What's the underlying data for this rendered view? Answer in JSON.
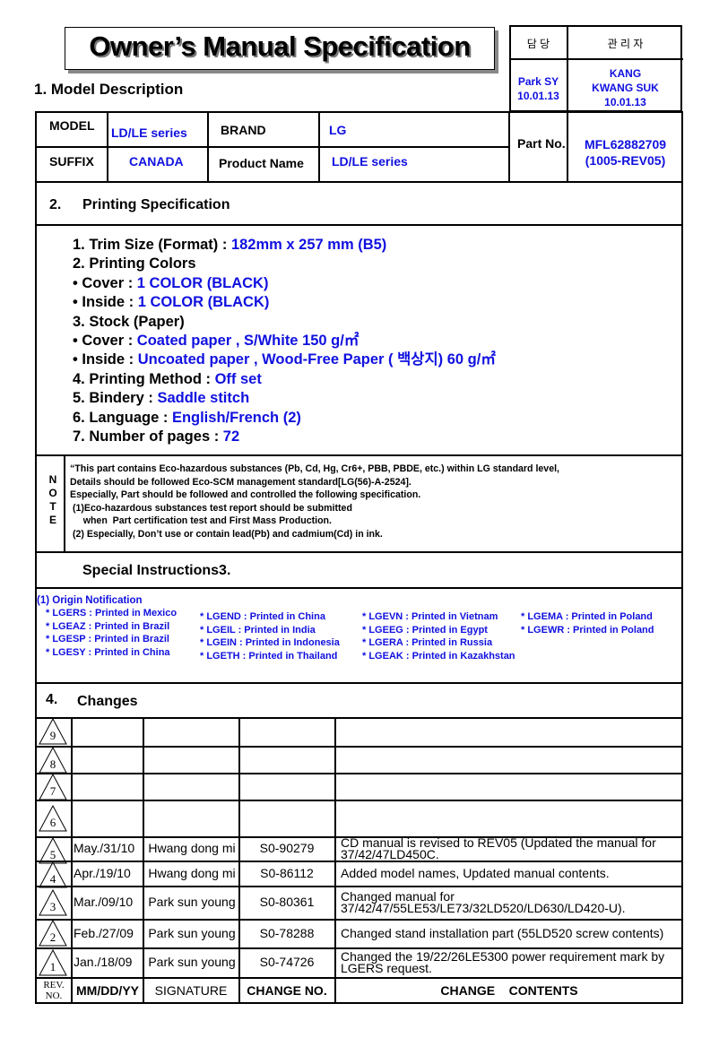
{
  "title": "Owner’s Manual Specification",
  "approval": {
    "col1_header": "담 당",
    "col2_header": "관 리 자",
    "col1_value": [
      "Park SY",
      "10.01.13"
    ],
    "col2_value": [
      "KANG",
      "KWANG SUK",
      "10.01.13"
    ]
  },
  "section1": {
    "title": "1. Model Description",
    "model_label": "MODEL",
    "model_value": "LD/LE series",
    "brand_label": "BRAND",
    "brand_value": "LG",
    "suffix_label": "SUFFIX",
    "suffix_value": "CANADA",
    "product_label": "Product Name",
    "product_value": "LD/LE series",
    "part_label": "Part No.",
    "part_value": [
      "MFL62882709",
      "(1005-REV05)"
    ]
  },
  "section2": {
    "num": "2.",
    "title": "Printing Specification",
    "lines": [
      {
        "label": "1. Trim Size (Format) : ",
        "value": "182mm x 257 mm (B5)"
      },
      {
        "label": "2. Printing Colors",
        "value": ""
      },
      {
        "label": "• Cover : ",
        "value": "1 COLOR (BLACK)"
      },
      {
        "label": "• Inside : ",
        "value": "1 COLOR (BLACK)"
      },
      {
        "label": "3. Stock (Paper)",
        "value": ""
      },
      {
        "label": "• Cover : ",
        "value": "Coated paper , S/White 150 g/㎡"
      },
      {
        "label": "• Inside : ",
        "value": "Uncoated paper , Wood-Free Paper ( 백상지) 60 g/㎡"
      },
      {
        "label": "4. Printing Method : ",
        "value": "Off set"
      },
      {
        "label": "5. Bindery  : ",
        "value": "Saddle stitch"
      },
      {
        "label": "6. Language : ",
        "value": "English/French (2)"
      },
      {
        "label": "7. Number of pages : ",
        "value": "72"
      }
    ]
  },
  "note": {
    "label": [
      "N",
      "O",
      "T",
      "E"
    ],
    "lines": [
      "“This part contains Eco-hazardous substances (Pb, Cd, Hg, Cr6+, PBB, PBDE, etc.) within LG standard level,",
      "Details should be followed Eco-SCM management standard[LG(56)-A-2524].",
      "Especially, Part should be followed and controlled the following specification.",
      " (1)Eco-hazardous substances test report should be submitted",
      "     when  Part certification test and First Mass Production.",
      " (2) Especially, Don’t use or contain lead(Pb) and cadmium(Cd) in ink."
    ]
  },
  "section3": {
    "title": "Special Instructions3.",
    "origin_title": "(1) Origin Notification",
    "columns": [
      [
        "* LGERS : Printed in Mexico",
        "* LGEAZ : Printed in Brazil",
        "* LGESP : Printed in Brazil",
        "* LGESY : Printed in China"
      ],
      [
        "* LGEND : Printed in China",
        "* LGEIL : Printed in India",
        "* LGEIN : Printed in Indonesia",
        "* LGETH : Printed in Thailand"
      ],
      [
        "* LGEVN : Printed in Vietnam",
        "* LGEEG : Printed in Egypt",
        "* LGERA : Printed in Russia",
        "* LGEAK : Printed in Kazakhstan"
      ],
      [
        "* LGEMA : Printed in Poland",
        "* LGEWR : Printed in Poland"
      ]
    ]
  },
  "section4": {
    "num": "4.",
    "title": "Changes",
    "rows": [
      {
        "rev": "9",
        "date": "",
        "sig": "",
        "no": "",
        "content": ""
      },
      {
        "rev": "8",
        "date": "",
        "sig": "",
        "no": "",
        "content": ""
      },
      {
        "rev": "7",
        "date": "",
        "sig": "",
        "no": "",
        "content": ""
      },
      {
        "rev": "6",
        "date": "",
        "sig": "",
        "no": "",
        "content": ""
      },
      {
        "rev": "5",
        "date": "May./31/10",
        "sig": "Hwang dong mi",
        "no": "S0-90279",
        "content": "CD manual is revised to REV05 (Updated the manual for 37/42/47LD450C."
      },
      {
        "rev": "4",
        "date": "Apr./19/10",
        "sig": "Hwang dong mi",
        "no": "S0-86112",
        "content": "Added model names, Updated manual contents."
      },
      {
        "rev": "3",
        "date": "Mar./09/10",
        "sig": "Park sun young",
        "no": "S0-80361",
        "content": "Changed manual for 37/42/47/55LE53/LE73/32LD520/LD630/LD420-U)."
      },
      {
        "rev": "2",
        "date": "Feb./27/09",
        "sig": "Park sun young",
        "no": "S0-78288",
        "content": "Changed stand installation part (55LD520 screw contents)"
      },
      {
        "rev": "1",
        "date": "Jan./18/09",
        "sig": "Park sun young",
        "no": "S0-74726",
        "content": "Changed the 19/22/26LE5300 power requirement mark by LGERS request."
      }
    ],
    "footer": {
      "rev": "REV. NO.",
      "date": "MM/DD/YY",
      "sig": "SIGNATURE",
      "no": "CHANGE NO.",
      "content": "CHANGE    CONTENTS"
    }
  },
  "colors": {
    "value_blue": "#1010e0"
  }
}
